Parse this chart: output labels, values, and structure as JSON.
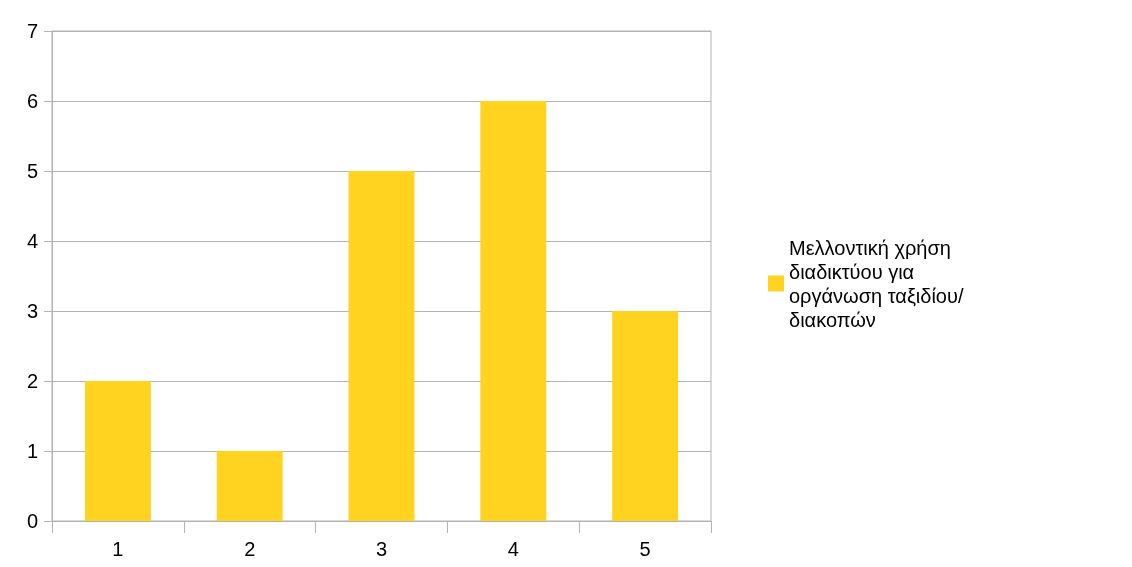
{
  "chart_data": {
    "type": "bar",
    "categories": [
      "1",
      "2",
      "3",
      "4",
      "5"
    ],
    "series": [
      {
        "name": "Μελλοντική χρήση διαδικτύου για οργάνωση ταξιδίου/ διακοπών",
        "color": "#ffd320",
        "values": [
          2,
          1,
          5,
          6,
          3
        ]
      }
    ],
    "ylim": [
      0,
      7
    ],
    "yticks": [
      0,
      1,
      2,
      3,
      4,
      5,
      6,
      7
    ],
    "grid": "y",
    "legend": "right"
  }
}
